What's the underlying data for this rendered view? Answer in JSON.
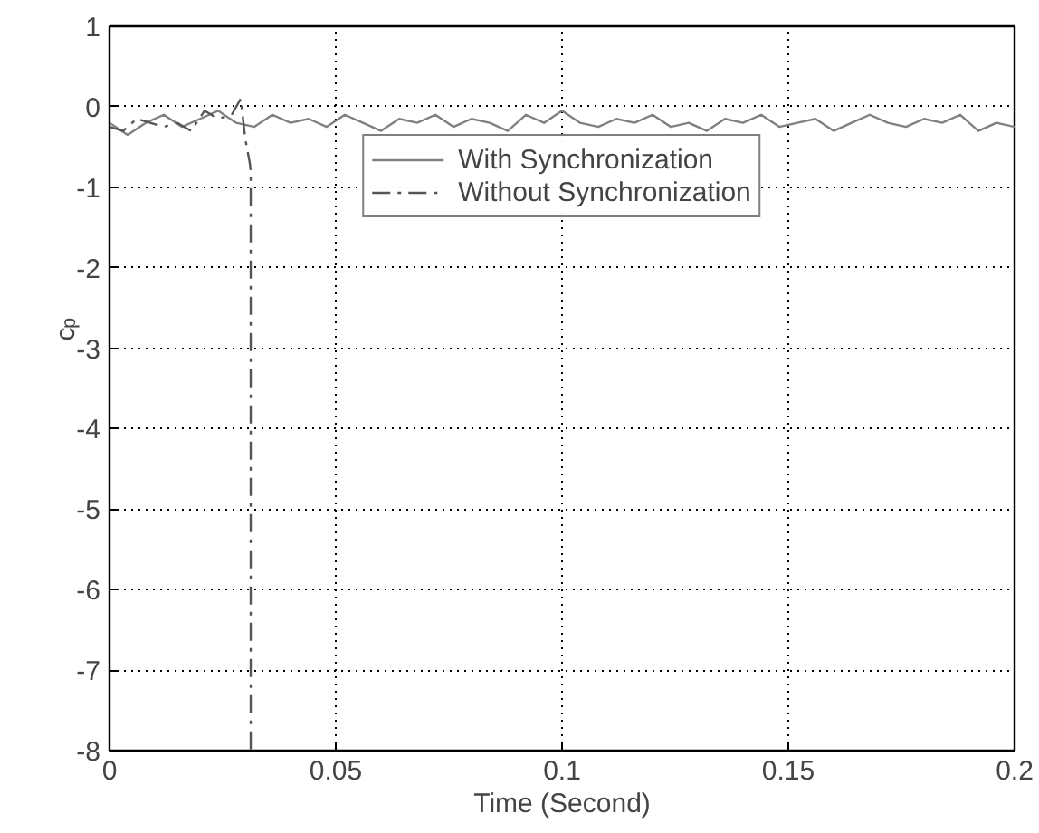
{
  "chart_data": {
    "type": "line",
    "xlabel": "Time (Second)",
    "ylabel": "c$_{p}$",
    "xlim": [
      0,
      0.2
    ],
    "xticks": [
      0,
      0.05,
      0.1,
      0.15,
      0.2
    ],
    "ylim": [
      -8,
      1
    ],
    "yticks": [
      -8,
      -7,
      -6,
      -5,
      -4,
      -3,
      -2,
      -1,
      0,
      1
    ],
    "grid": true,
    "legend": "top center",
    "series": [
      {
        "name": "With Synchronization",
        "color": "#808080",
        "line_style": "solid",
        "x": [
          0,
          0.004,
          0.008,
          0.012,
          0.016,
          0.02,
          0.024,
          0.028,
          0.032,
          0.036,
          0.04,
          0.044,
          0.048,
          0.052,
          0.056,
          0.06,
          0.064,
          0.068,
          0.072,
          0.076,
          0.08,
          0.084,
          0.088,
          0.092,
          0.096,
          0.1,
          0.104,
          0.108,
          0.112,
          0.116,
          0.12,
          0.124,
          0.128,
          0.132,
          0.136,
          0.14,
          0.144,
          0.148,
          0.152,
          0.156,
          0.16,
          0.164,
          0.168,
          0.172,
          0.176,
          0.18,
          0.184,
          0.188,
          0.192,
          0.196,
          0.2
        ],
        "values": [
          -0.2,
          -0.35,
          -0.2,
          -0.1,
          -0.25,
          -0.15,
          -0.05,
          -0.2,
          -0.25,
          -0.1,
          -0.2,
          -0.15,
          -0.25,
          -0.1,
          -0.2,
          -0.3,
          -0.15,
          -0.2,
          -0.1,
          -0.25,
          -0.15,
          -0.2,
          -0.3,
          -0.1,
          -0.2,
          -0.05,
          -0.2,
          -0.25,
          -0.15,
          -0.2,
          -0.1,
          -0.25,
          -0.2,
          -0.3,
          -0.15,
          -0.2,
          -0.1,
          -0.25,
          -0.2,
          -0.15,
          -0.3,
          -0.2,
          -0.1,
          -0.2,
          -0.25,
          -0.15,
          -0.2,
          -0.1,
          -0.3,
          -0.2,
          -0.25
        ]
      },
      {
        "name": "Without Synchronization",
        "color": "#555555",
        "line_style": "dashdot",
        "x": [
          0,
          0.003,
          0.006,
          0.009,
          0.012,
          0.015,
          0.018,
          0.021,
          0.024,
          0.027,
          0.029,
          0.03,
          0.031,
          0.0312,
          0.0312
        ],
        "values": [
          -0.25,
          -0.3,
          -0.15,
          -0.2,
          -0.25,
          -0.2,
          -0.3,
          -0.05,
          -0.15,
          -0.1,
          0.1,
          -0.4,
          -0.7,
          -0.8,
          -8
        ]
      }
    ]
  }
}
